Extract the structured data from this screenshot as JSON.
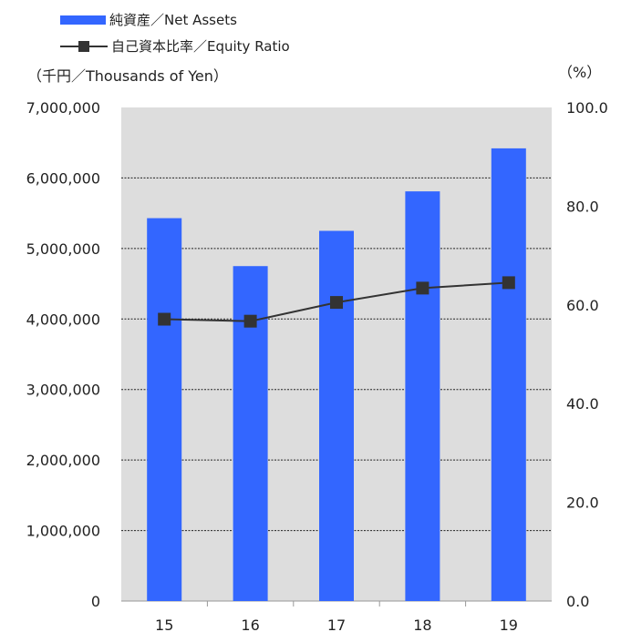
{
  "chart_data": {
    "type": "bar",
    "categories": [
      "15",
      "16",
      "17",
      "18",
      "19"
    ],
    "series": [
      {
        "name": "純資産／Net Assets",
        "kind": "bar",
        "axis": "left",
        "values": [
          5430000,
          4750000,
          5250000,
          5810000,
          6420000
        ]
      },
      {
        "name": "自己資本比率／Equity Ratio",
        "kind": "line",
        "axis": "right",
        "values": [
          57.1,
          56.7,
          60.5,
          63.4,
          64.5
        ]
      }
    ],
    "y_left": {
      "label": "（千円／Thousands of Yen）",
      "min": 0,
      "max": 7000000,
      "ticks": [
        "7,000,000",
        "6,000,000",
        "5,000,000",
        "4,000,000",
        "3,000,000",
        "2,000,000",
        "1,000,000",
        "0"
      ]
    },
    "y_right": {
      "label": "（%）",
      "min": 0,
      "max": 100,
      "ticks": [
        "100.0",
        "80.0",
        "60.0",
        "40.0",
        "20.0",
        "0.0"
      ]
    },
    "grid": true,
    "legend_position": "top-left",
    "colors": {
      "bar": "#3366ff",
      "line": "#333333",
      "plot_bg": "#dddddd"
    }
  }
}
